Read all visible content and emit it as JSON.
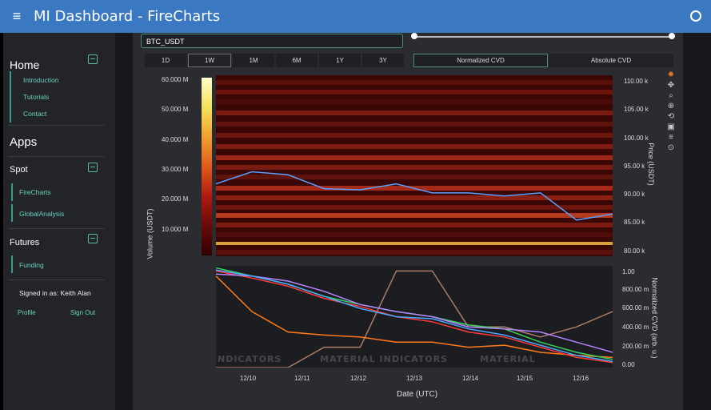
{
  "header": {
    "title": "MI Dashboard  -  FireCharts",
    "menu_icon": "≡"
  },
  "sidebar": {
    "home": "Home",
    "home_links": [
      "Introduction",
      "Tutorials",
      "Contact"
    ],
    "apps": "Apps",
    "spot": "Spot",
    "spot_links": [
      "FireCharts",
      "GlobalAnalysis"
    ],
    "futures": "Futures",
    "futures_links": [
      "Funding"
    ],
    "signed_in": "Signed in as: Keith Alan",
    "profile": "Profile",
    "sign_out": "Sign Out"
  },
  "controls": {
    "symbol": "BTC_USDT",
    "timeframes": [
      "1D",
      "1W",
      "1M",
      "6M",
      "1Y",
      "3Y"
    ],
    "active_timeframe": "1W",
    "normalized_cvd": "Normalized CVD",
    "absolute_cvd": "Absolute CVD"
  },
  "chart_data": [
    {
      "type": "heatmap",
      "ylabel": "Volume (USDT)",
      "y2label": "Price (USDT)",
      "colorbar_ticks": [
        "60.000 M",
        "50.000 M",
        "40.000 M",
        "30.000 M",
        "20.000 M",
        "10.000 M"
      ],
      "price_ticks": [
        "110.00 k",
        "105.00 k",
        "100.00 k",
        "95.00 k",
        "90.00 k",
        "85.00 k",
        "80.00 k"
      ],
      "series": [
        {
          "x": [
            "12/9",
            "12/10",
            "12/11",
            "12/11.5",
            "12/12",
            "12/12.5",
            "12/13",
            "12/14",
            "12/15",
            "12/15.6",
            "12/16",
            "12/16.6"
          ],
          "values": [
            92000,
            94000,
            93500,
            91200,
            91000,
            92000,
            90500,
            90500,
            90000,
            90500,
            86000,
            87000
          ]
        }
      ]
    },
    {
      "type": "line",
      "ylabel": "Normalized CVD (arb. u.)",
      "y_ticks": [
        "1.00",
        "800.00 m",
        "600.00 m",
        "400.00 m",
        "200.00 m",
        "0.00"
      ],
      "x_ticks": [
        "12/10",
        "12/11",
        "12/12",
        "12/13",
        "12/14",
        "12/15",
        "12/16"
      ],
      "xlabel": "Date (UTC)",
      "ylim": [
        0,
        1
      ],
      "series": [
        {
          "color": "#a97b6a",
          "values": [
            0,
            0,
            0,
            0.2,
            0.2,
            0.95,
            0.95,
            0.4,
            0.4,
            0.3,
            0.4,
            0.55
          ]
        },
        {
          "color": "#ff7a1a",
          "values": [
            0.9,
            0.55,
            0.35,
            0.32,
            0.3,
            0.25,
            0.25,
            0.2,
            0.22,
            0.15,
            0.12,
            0.1
          ]
        },
        {
          "color": "#3ad15a",
          "values": [
            0.98,
            0.9,
            0.82,
            0.7,
            0.62,
            0.55,
            0.5,
            0.42,
            0.38,
            0.25,
            0.15,
            0.08
          ]
        },
        {
          "color": "#ff3b3b",
          "values": [
            0.95,
            0.88,
            0.8,
            0.68,
            0.6,
            0.5,
            0.45,
            0.35,
            0.3,
            0.2,
            0.1,
            0.05
          ]
        },
        {
          "color": "#b585ff",
          "values": [
            0.92,
            0.9,
            0.85,
            0.75,
            0.62,
            0.55,
            0.5,
            0.4,
            0.38,
            0.35,
            0.25,
            0.15
          ]
        },
        {
          "color": "#4aa8ff",
          "values": [
            0.96,
            0.9,
            0.82,
            0.7,
            0.58,
            0.5,
            0.48,
            0.38,
            0.32,
            0.22,
            0.12,
            0.06
          ]
        }
      ]
    }
  ],
  "watermark": {
    "text1": "NDICATORS",
    "text2": "MATERIAL INDICATORS",
    "text3": "MATERIAL"
  }
}
